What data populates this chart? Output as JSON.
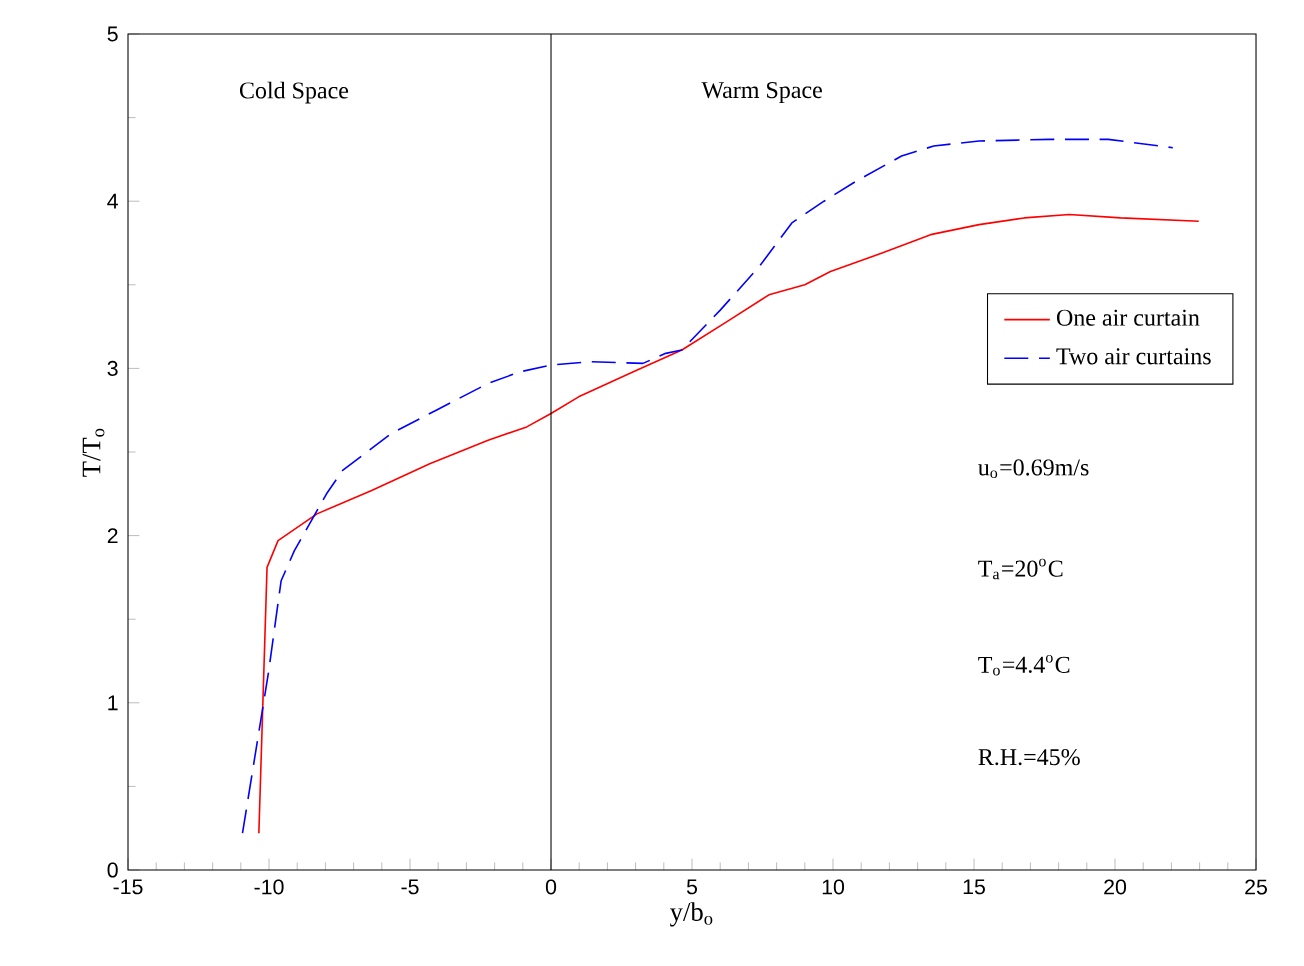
{
  "chart_data": {
    "type": "line",
    "xlabel": "y/b$_{o}$",
    "ylabel": "T/T$_{o}$",
    "xlim": [
      -15,
      25
    ],
    "xticks": [
      -15,
      -10,
      -5,
      0,
      5,
      10,
      15,
      20,
      25
    ],
    "ylim": [
      0,
      5
    ],
    "yticks": [
      0,
      1,
      2,
      3,
      4,
      5
    ],
    "grid": false,
    "legend": "right",
    "marker": "none",
    "ref_lines": [
      {
        "axis": "x",
        "value": 0,
        "color": "#000000"
      }
    ],
    "annotations": [
      "Cold Space",
      "Warm Space",
      "u$_{o}$=0.69m/s",
      "T$_{a}$=20$^{o}$C",
      "T$_{o}$=4.4$^{o}$C",
      "R.H.=45%"
    ],
    "series": [
      {
        "name": "One air curtain",
        "color": "#ff0000",
        "line_style": "solid",
        "x": [
          -10.36,
          -10.07,
          -9.68,
          -8.3,
          -6.36,
          -4.3,
          -2.23,
          -0.86,
          0,
          0.98,
          2.92,
          4.64,
          6.24,
          7.73,
          9.0,
          9.91,
          11.74,
          13.46,
          15.18,
          16.78,
          18.38,
          20.2,
          22.97
        ],
        "values": [
          0.22,
          1.81,
          1.97,
          2.13,
          2.27,
          2.43,
          2.57,
          2.65,
          2.73,
          2.83,
          2.98,
          3.11,
          3.28,
          3.44,
          3.5,
          3.58,
          3.69,
          3.8,
          3.86,
          3.9,
          3.92,
          3.9,
          3.88
        ]
      },
      {
        "name": "Two air curtains",
        "color": "#0000ff",
        "line_style": "dashed",
        "x": [
          -10.94,
          -10.02,
          -9.57,
          -9.1,
          -7.96,
          -7.39,
          -5.67,
          -4.07,
          -2.23,
          -1.09,
          0,
          1.43,
          3.26,
          4.07,
          4.64,
          6.01,
          7.39,
          8.54,
          9.68,
          10.82,
          12.43,
          13.57,
          15.18,
          17.7,
          19.76,
          22.05
        ],
        "values": [
          0.22,
          1.18,
          1.73,
          1.91,
          2.25,
          2.39,
          2.61,
          2.75,
          2.91,
          2.98,
          3.02,
          3.04,
          3.03,
          3.09,
          3.11,
          3.35,
          3.61,
          3.87,
          4.0,
          4.12,
          4.27,
          4.33,
          4.36,
          4.37,
          4.37,
          4.32
        ]
      }
    ]
  }
}
